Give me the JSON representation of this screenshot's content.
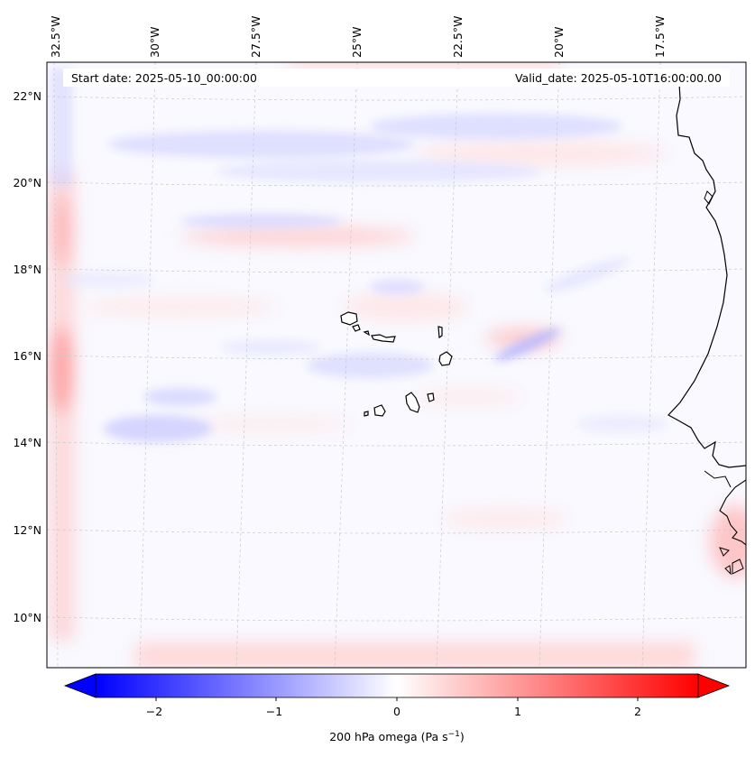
{
  "map": {
    "header": {
      "start_label": "Start date: 2025-05-10_00:00:00",
      "valid_label": "Valid_date: 2025-05-10T16:00:00.00"
    },
    "lon_labels": [
      "32.5°W",
      "30°W",
      "27.5°W",
      "25°W",
      "22.5°W",
      "20°W",
      "17.5°W"
    ],
    "lat_labels": [
      "22°N",
      "20°N",
      "18°N",
      "16°N",
      "14°N",
      "12°N",
      "10°N"
    ],
    "colorbar": {
      "label_main": "200 hPa omega (Pa s",
      "label_exp": "−1",
      "label_close": ")",
      "ticks": [
        "−2",
        "−1",
        "0",
        "1",
        "2"
      ],
      "min_color": "#0000ff",
      "mid_color": "#ffffff",
      "max_color": "#ff0000"
    }
  }
}
